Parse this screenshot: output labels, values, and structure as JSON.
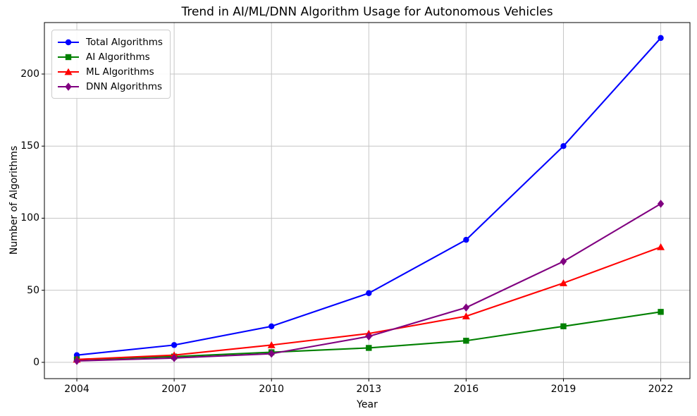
{
  "chart_data": {
    "type": "line",
    "title": "Trend in AI/ML/DNN Algorithm Usage for Autonomous Vehicles",
    "xlabel": "Year",
    "ylabel": "Number of Algorithms",
    "x": [
      2004,
      2007,
      2010,
      2013,
      2016,
      2019,
      2022
    ],
    "xticklabels": [
      "2004",
      "2007",
      "2010",
      "2013",
      "2016",
      "2019",
      "2022"
    ],
    "yticks": [
      0,
      50,
      100,
      150,
      200
    ],
    "xlim": [
      2003.0,
      2022.9
    ],
    "ylim": [
      -11.3,
      235.7
    ],
    "grid": true,
    "legend_position": "upper left",
    "series": [
      {
        "name": "Total Algorithms",
        "color": "#0000ff",
        "marker": "circle",
        "values": [
          5,
          12,
          25,
          48,
          85,
          150,
          225
        ]
      },
      {
        "name": "AI Algorithms",
        "color": "#008000",
        "marker": "square",
        "values": [
          2,
          4,
          7,
          10,
          15,
          25,
          35
        ]
      },
      {
        "name": "ML Algorithms",
        "color": "#ff0000",
        "marker": "triangle",
        "values": [
          2,
          5,
          12,
          20,
          32,
          55,
          80
        ]
      },
      {
        "name": "DNN Algorithms",
        "color": "#800080",
        "marker": "diamond",
        "values": [
          1,
          3,
          6,
          18,
          38,
          70,
          110
        ]
      }
    ],
    "grid_color": "#c6c6c6",
    "spine_color": "#000000"
  }
}
